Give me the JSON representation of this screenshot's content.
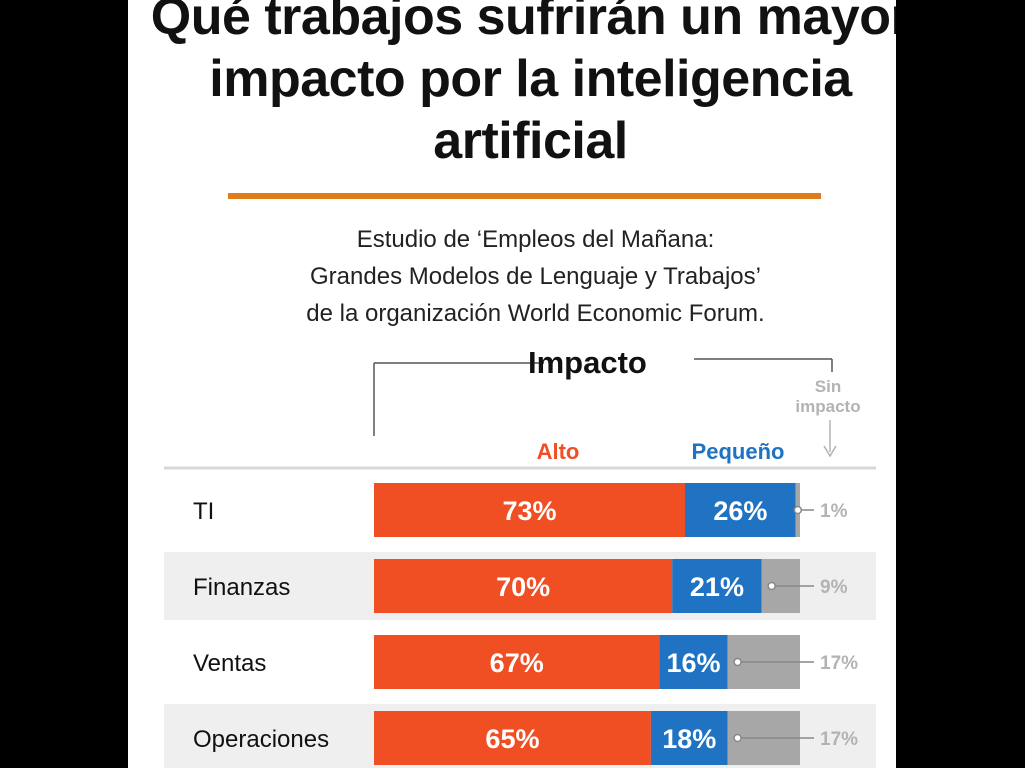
{
  "title": "Qué trabajos sufrirán un mayor impacto por la inteligencia artificial",
  "subtitle_lines": [
    "Estudio de ‘Empleos del Mañana:",
    "Grandes Modelos de Lenguaje y Trabajos’",
    "de la organización World Economic Forum."
  ],
  "legend": {
    "impact_header": "Impacto",
    "high": "Alto",
    "small": "Pequeño",
    "none_line1": "Sin",
    "none_line2": "impacto"
  },
  "colors": {
    "high": "#f04e23",
    "small": "#1f73c2",
    "none": "#a7a7a7",
    "title_rule": "#e07c1b",
    "row_band": "#efefef"
  },
  "chart_data": {
    "type": "bar",
    "orientation": "horizontal",
    "stacked": true,
    "categories": [
      "TI",
      "Finanzas",
      "Ventas",
      "Operaciones"
    ],
    "series": [
      {
        "name": "Alto",
        "values": [
          73,
          70,
          67,
          65
        ],
        "labels": [
          "73%",
          "70%",
          "67%",
          "65%"
        ]
      },
      {
        "name": "Pequeño",
        "values": [
          26,
          21,
          16,
          18
        ],
        "labels": [
          "26%",
          "21%",
          "16%",
          "18%"
        ]
      },
      {
        "name": "Sin impacto",
        "values": [
          1,
          9,
          17,
          17
        ],
        "labels": [
          "1%",
          "9%",
          "17%",
          "17%"
        ]
      }
    ],
    "xlim": [
      0,
      100
    ]
  }
}
